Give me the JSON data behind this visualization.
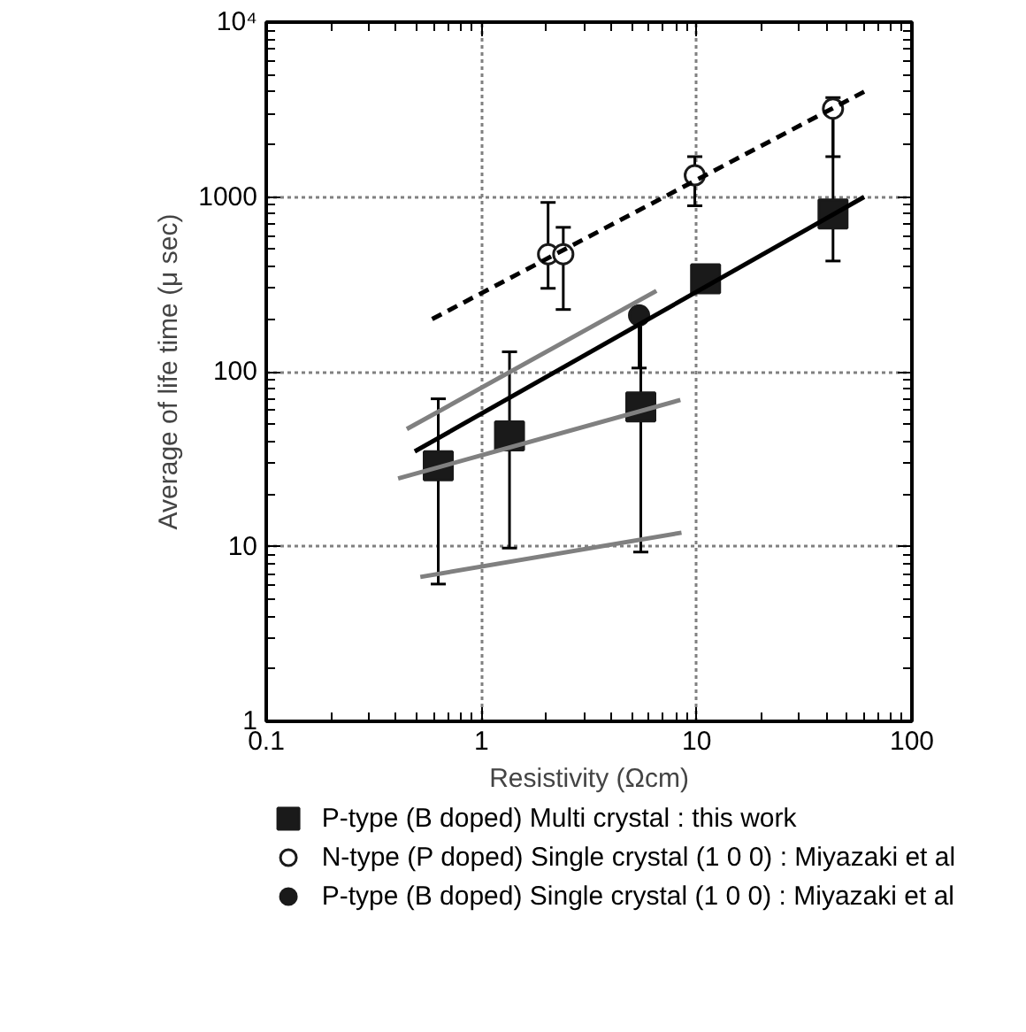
{
  "chart_data": {
    "type": "scatter",
    "xlabel": "Resistivity (Ωcm)",
    "ylabel": "Average of life time (μ sec)",
    "log": "xy",
    "xlim": [
      0.1,
      100
    ],
    "ylim": [
      1,
      10000
    ],
    "xticks": [
      0.1,
      1,
      10,
      100
    ],
    "yticks": [
      1,
      10,
      100,
      1000,
      {
        "value": 10000,
        "label": "10⁴"
      }
    ],
    "grid": true,
    "legend": "bottom",
    "series": [
      {
        "name": "P-type (B doped) Multi crystal  : this work",
        "color": "#1a1a1a",
        "marker": "square",
        "x": [
          0.63,
          1.35,
          5.5,
          11,
          43
        ],
        "values": [
          29,
          43,
          63,
          340,
          800
        ],
        "errors": [
          [
            6.1,
            70
          ],
          [
            9.8,
            130
          ],
          [
            9.3,
            200
          ],
          [
            290,
            390
          ],
          [
            430,
            3500
          ]
        ]
      },
      {
        "name": "N-type (P doped) Single crystal (1 0 0) : Miyazaki et al",
        "marker": "circle",
        "color": "#ffffff",
        "x": [
          2.04,
          2.4,
          9.8,
          43
        ],
        "values": [
          470,
          470,
          1330,
          3200
        ],
        "errors": [
          [
            300,
            930
          ],
          [
            227,
            670
          ],
          [
            890,
            1700
          ],
          [
            1700,
            3700
          ]
        ]
      },
      {
        "name": "P-type (B doped) Single crystal (1 0 0) : Miyazaki et al",
        "color": "#1a1a1a",
        "marker": "circle",
        "x": [
          5.4
        ],
        "values": [
          210
        ],
        "errors": [
          [
            105,
            210
          ]
        ]
      },
      {
        "type": "line",
        "line_style": "dashed",
        "color": "#000000",
        "x": [
          0.59,
          60
        ],
        "values": [
          200,
          4000
        ]
      },
      {
        "type": "line",
        "line_style": "solid",
        "color": "#000000",
        "x": [
          0.49,
          60
        ],
        "values": [
          35,
          1000
        ]
      },
      {
        "type": "line",
        "line_style": "solid",
        "color": "#808080",
        "x": [
          0.45,
          6.5
        ],
        "values": [
          47,
          290
        ]
      },
      {
        "type": "line",
        "line_style": "solid",
        "color": "#808080",
        "x": [
          0.41,
          8.4
        ],
        "values": [
          24.5,
          69
        ]
      },
      {
        "type": "line",
        "line_style": "solid",
        "color": "#808080",
        "x": [
          0.52,
          8.5
        ],
        "values": [
          6.7,
          12
        ]
      }
    ]
  }
}
